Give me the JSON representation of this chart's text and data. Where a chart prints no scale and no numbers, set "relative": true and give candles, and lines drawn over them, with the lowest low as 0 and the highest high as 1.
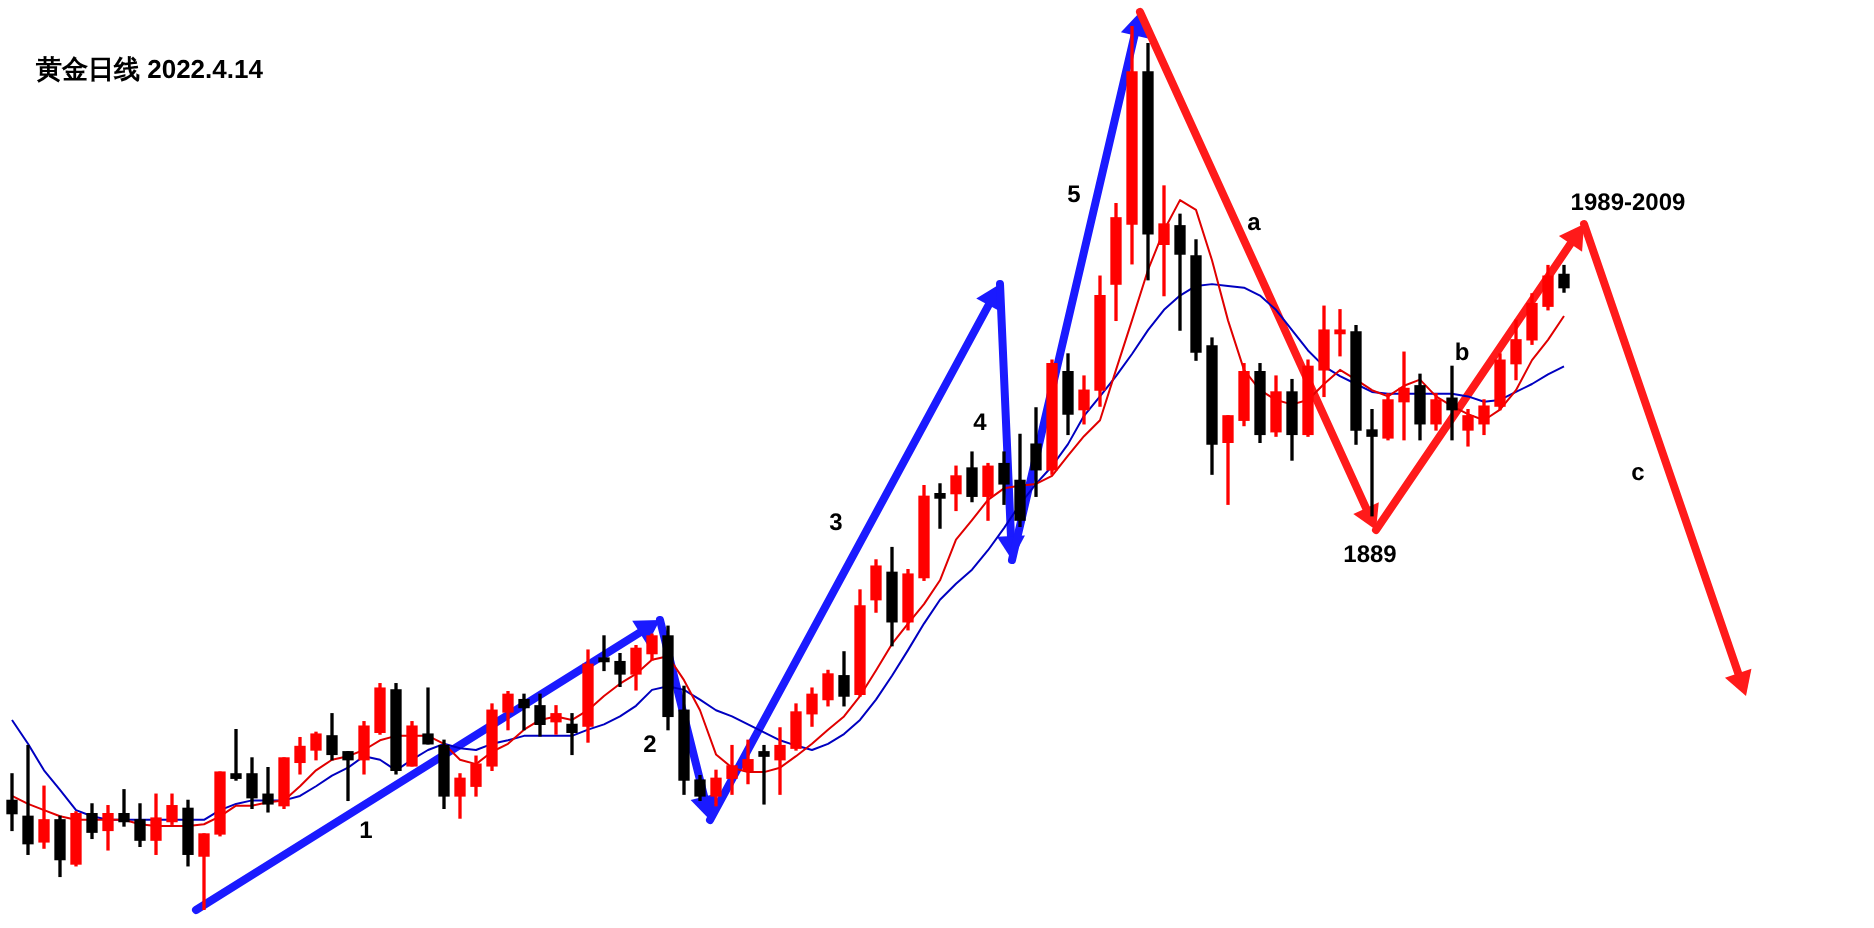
{
  "chart_data": {
    "type": "candlestick",
    "title": "黄金日线 2022.4.14",
    "relative": true,
    "categories": [
      null,
      null,
      null,
      null,
      null,
      null,
      null,
      null,
      null,
      null,
      null,
      null,
      null,
      null,
      null,
      null,
      null,
      null,
      null,
      null,
      null,
      null,
      null,
      null,
      null,
      null,
      null,
      null,
      null,
      null,
      null,
      null,
      null,
      null,
      null,
      null,
      null,
      null,
      null,
      null,
      null,
      null,
      null,
      null,
      null,
      null,
      null,
      null,
      null,
      null,
      null,
      null,
      null,
      null,
      null,
      null,
      null,
      null,
      null,
      null,
      null,
      null,
      null,
      null,
      null,
      null,
      null,
      null,
      null,
      null,
      null,
      null,
      null,
      null,
      null,
      null,
      null,
      null,
      null,
      null,
      null,
      null,
      null,
      null,
      null,
      null,
      null,
      null,
      null,
      null,
      null,
      null,
      null,
      null,
      null,
      null,
      null,
      null
    ],
    "ohlc": [
      [
        0.124,
        0.154,
        0.09,
        0.109
      ],
      [
        0.106,
        0.186,
        0.063,
        0.075
      ],
      [
        0.077,
        0.14,
        0.07,
        0.102
      ],
      [
        0.102,
        0.106,
        0.038,
        0.057
      ],
      [
        0.052,
        0.111,
        0.05,
        0.109
      ],
      [
        0.109,
        0.12,
        0.081,
        0.088
      ],
      [
        0.09,
        0.118,
        0.068,
        0.109
      ],
      [
        0.109,
        0.136,
        0.095,
        0.1
      ],
      [
        0.102,
        0.12,
        0.072,
        0.079
      ],
      [
        0.079,
        0.131,
        0.063,
        0.104
      ],
      [
        0.1,
        0.131,
        0.097,
        0.118
      ],
      [
        0.115,
        0.124,
        0.05,
        0.063
      ],
      [
        0.061,
        0.086,
        0,
        0.086
      ],
      [
        0.086,
        0.156,
        0.084,
        0.156
      ],
      [
        0.154,
        0.204,
        0.147,
        0.149
      ],
      [
        0.154,
        0.172,
        0.115,
        0.127
      ],
      [
        0.131,
        0.161,
        0.111,
        0.12
      ],
      [
        0.118,
        0.172,
        0.115,
        0.172
      ],
      [
        0.167,
        0.195,
        0.154,
        0.185
      ],
      [
        0.181,
        0.201,
        0.17,
        0.199
      ],
      [
        0.197,
        0.222,
        0.17,
        0.176
      ],
      [
        0.179,
        0.179,
        0.124,
        0.17
      ],
      [
        0.17,
        0.213,
        0.154,
        0.208
      ],
      [
        0.201,
        0.256,
        0.199,
        0.251
      ],
      [
        0.249,
        0.256,
        0.154,
        0.158
      ],
      [
        0.163,
        0.213,
        0.163,
        0.208
      ],
      [
        0.199,
        0.251,
        0.188,
        0.188
      ],
      [
        0.186,
        0.192,
        0.115,
        0.129
      ],
      [
        0.129,
        0.154,
        0.104,
        0.149
      ],
      [
        0.14,
        0.174,
        0.129,
        0.165
      ],
      [
        0.163,
        0.233,
        0.158,
        0.226
      ],
      [
        0.224,
        0.247,
        0.204,
        0.244
      ],
      [
        0.238,
        0.244,
        0.204,
        0.229
      ],
      [
        0.231,
        0.244,
        0.197,
        0.21
      ],
      [
        0.213,
        0.231,
        0.199,
        0.222
      ],
      [
        0.21,
        0.222,
        0.176,
        0.201
      ],
      [
        0.208,
        0.294,
        0.19,
        0.278
      ],
      [
        0.285,
        0.31,
        0.271,
        0.281
      ],
      [
        0.281,
        0.29,
        0.253,
        0.267
      ],
      [
        0.267,
        0.299,
        0.249,
        0.296
      ],
      [
        0.29,
        0.312,
        0.283,
        0.31
      ],
      [
        0.31,
        0.321,
        0.204,
        0.219
      ],
      [
        0.226,
        0.253,
        0.131,
        0.147
      ],
      [
        0.147,
        0.152,
        0.124,
        0.129
      ],
      [
        0.129,
        0.158,
        0.118,
        0.149
      ],
      [
        0.149,
        0.186,
        0.131,
        0.163
      ],
      [
        0.158,
        0.192,
        0.143,
        0.17
      ],
      [
        0.179,
        0.186,
        0.12,
        0.174
      ],
      [
        0.17,
        0.206,
        0.131,
        0.186
      ],
      [
        0.183,
        0.233,
        0.181,
        0.224
      ],
      [
        0.222,
        0.251,
        0.208,
        0.244
      ],
      [
        0.238,
        0.271,
        0.231,
        0.267
      ],
      [
        0.265,
        0.292,
        0.231,
        0.242
      ],
      [
        0.244,
        0.362,
        0.242,
        0.344
      ],
      [
        0.351,
        0.396,
        0.337,
        0.389
      ],
      [
        0.382,
        0.41,
        0.299,
        0.326
      ],
      [
        0.326,
        0.385,
        0.317,
        0.38
      ],
      [
        0.376,
        0.48,
        0.373,
        0.468
      ],
      [
        0.471,
        0.482,
        0.432,
        0.466
      ],
      [
        0.471,
        0.502,
        0.452,
        0.491
      ],
      [
        0.5,
        0.518,
        0.462,
        0.468
      ],
      [
        0.468,
        0.505,
        0.441,
        0.502
      ],
      [
        0.505,
        0.518,
        0.459,
        0.482
      ],
      [
        0.486,
        0.538,
        0.434,
        0.441
      ],
      [
        0.527,
        0.568,
        0.468,
        0.498
      ],
      [
        0.498,
        0.622,
        0.493,
        0.618
      ],
      [
        0.609,
        0.629,
        0.538,
        0.561
      ],
      [
        0.566,
        0.604,
        0.55,
        0.588
      ],
      [
        0.588,
        0.717,
        0.57,
        0.695
      ],
      [
        0.708,
        0.799,
        0.667,
        0.783
      ],
      [
        0.776,
        1,
        0.731,
        0.948
      ],
      [
        0.948,
        0.98,
        0.713,
        0.765
      ],
      [
        0.753,
        0.819,
        0.695,
        0.776
      ],
      [
        0.774,
        0.787,
        0.656,
        0.742
      ],
      [
        0.74,
        0.758,
        0.622,
        0.631
      ],
      [
        0.638,
        0.647,
        0.493,
        0.527
      ],
      [
        0.529,
        0.559,
        0.459,
        0.559
      ],
      [
        0.554,
        0.618,
        0.548,
        0.609
      ],
      [
        0.609,
        0.618,
        0.529,
        0.538
      ],
      [
        0.541,
        0.604,
        0.536,
        0.586
      ],
      [
        0.586,
        0.6,
        0.509,
        0.538
      ],
      [
        0.538,
        0.622,
        0.536,
        0.615
      ],
      [
        0.611,
        0.683,
        0.581,
        0.656
      ],
      [
        0.652,
        0.679,
        0.627,
        0.656
      ],
      [
        0.654,
        0.661,
        0.527,
        0.543
      ],
      [
        0.543,
        0.566,
        0.446,
        0.536
      ],
      [
        0.534,
        0.584,
        0.532,
        0.577
      ],
      [
        0.575,
        0.631,
        0.532,
        0.59
      ],
      [
        0.593,
        0.606,
        0.532,
        0.55
      ],
      [
        0.55,
        0.584,
        0.543,
        0.577
      ],
      [
        0.579,
        0.615,
        0.532,
        0.566
      ],
      [
        0.543,
        0.566,
        0.525,
        0.559
      ],
      [
        0.55,
        0.577,
        0.538,
        0.57
      ],
      [
        0.57,
        0.629,
        0.566,
        0.622
      ],
      [
        0.618,
        0.667,
        0.6,
        0.645
      ],
      [
        0.645,
        0.697,
        0.64,
        0.686
      ],
      [
        0.683,
        0.729,
        0.679,
        0.717
      ],
      [
        0.719,
        0.729,
        0.699,
        0.704
      ]
    ],
    "colors": [
      "#000000",
      "#000000",
      "#ff0000",
      "#000000",
      "#ff0000",
      "#000000",
      "#ff0000",
      "#000000",
      "#000000",
      "#ff0000",
      "#ff0000",
      "#000000",
      "#ff0000",
      "#ff0000",
      "#000000",
      "#000000",
      "#000000",
      "#ff0000",
      "#ff0000",
      "#ff0000",
      "#000000",
      "#000000",
      "#ff0000",
      "#ff0000",
      "#000000",
      "#ff0000",
      "#000000",
      "#000000",
      "#ff0000",
      "#ff0000",
      "#ff0000",
      "#ff0000",
      "#000000",
      "#000000",
      "#ff0000",
      "#000000",
      "#ff0000",
      "#000000",
      "#000000",
      "#ff0000",
      "#ff0000",
      "#000000",
      "#000000",
      "#000000",
      "#ff0000",
      "#ff0000",
      "#ff0000",
      "#000000",
      "#ff0000",
      "#ff0000",
      "#ff0000",
      "#ff0000",
      "#000000",
      "#ff0000",
      "#ff0000",
      "#000000",
      "#ff0000",
      "#ff0000",
      "#000000",
      "#ff0000",
      "#000000",
      "#ff0000",
      "#000000",
      "#000000",
      "#000000",
      "#ff0000",
      "#000000",
      "#ff0000",
      "#ff0000",
      "#ff0000",
      "#ff0000",
      "#000000",
      "#ff0000",
      "#000000",
      "#000000",
      "#000000",
      "#ff0000",
      "#ff0000",
      "#000000",
      "#ff0000",
      "#000000",
      "#ff0000",
      "#ff0000",
      "#ff0000",
      "#000000",
      "#000000",
      "#ff0000",
      "#ff0000",
      "#000000",
      "#ff0000",
      "#000000",
      "#ff0000",
      "#ff0000",
      "#ff0000",
      "#ff0000",
      "#ff0000",
      "#ff0000",
      "#000000"
    ],
    "series": [
      {
        "type": "line",
        "color": "#e00000",
        "values": [
          0.129,
          0.12,
          0.113,
          0.106,
          0.102,
          0.102,
          0.102,
          0.102,
          0.097,
          0.095,
          0.095,
          0.095,
          0.097,
          0.106,
          0.118,
          0.118,
          0.122,
          0.124,
          0.14,
          0.158,
          0.17,
          0.174,
          0.181,
          0.192,
          0.197,
          0.197,
          0.197,
          0.188,
          0.17,
          0.165,
          0.179,
          0.188,
          0.204,
          0.215,
          0.219,
          0.215,
          0.226,
          0.242,
          0.256,
          0.267,
          0.283,
          0.287,
          0.26,
          0.226,
          0.176,
          0.161,
          0.156,
          0.156,
          0.161,
          0.174,
          0.188,
          0.204,
          0.219,
          0.242,
          0.271,
          0.301,
          0.324,
          0.346,
          0.373,
          0.419,
          0.441,
          0.464,
          0.477,
          0.48,
          0.482,
          0.491,
          0.514,
          0.536,
          0.554,
          0.611,
          0.667,
          0.724,
          0.769,
          0.803,
          0.792,
          0.735,
          0.667,
          0.611,
          0.588,
          0.577,
          0.572,
          0.577,
          0.595,
          0.611,
          0.6,
          0.588,
          0.581,
          0.593,
          0.6,
          0.581,
          0.57,
          0.561,
          0.554,
          0.566,
          0.588,
          0.622,
          0.645,
          0.672
        ]
      },
      {
        "type": "line",
        "color": "#0000c0",
        "values": [
          0.215,
          0.188,
          0.158,
          0.136,
          0.113,
          0.106,
          0.102,
          0.102,
          0.102,
          0.102,
          0.102,
          0.102,
          0.102,
          0.113,
          0.12,
          0.124,
          0.124,
          0.124,
          0.129,
          0.14,
          0.152,
          0.161,
          0.174,
          0.17,
          0.158,
          0.17,
          0.181,
          0.188,
          0.183,
          0.181,
          0.188,
          0.192,
          0.197,
          0.197,
          0.197,
          0.197,
          0.204,
          0.21,
          0.219,
          0.231,
          0.249,
          0.253,
          0.249,
          0.238,
          0.226,
          0.219,
          0.21,
          0.201,
          0.192,
          0.186,
          0.181,
          0.188,
          0.199,
          0.215,
          0.238,
          0.265,
          0.294,
          0.324,
          0.351,
          0.369,
          0.385,
          0.407,
          0.432,
          0.459,
          0.482,
          0.502,
          0.527,
          0.559,
          0.581,
          0.604,
          0.629,
          0.656,
          0.679,
          0.695,
          0.706,
          0.708,
          0.706,
          0.704,
          0.695,
          0.679,
          0.656,
          0.633,
          0.615,
          0.604,
          0.595,
          0.586,
          0.584,
          0.584,
          0.584,
          0.584,
          0.584,
          0.581,
          0.575,
          0.577,
          0.586,
          0.595,
          0.606,
          0.615
        ]
      }
    ],
    "annotations": [
      "1",
      "2",
      "3",
      "4",
      "5",
      "a",
      "b",
      "c",
      "1889",
      "1989-2009"
    ]
  }
}
